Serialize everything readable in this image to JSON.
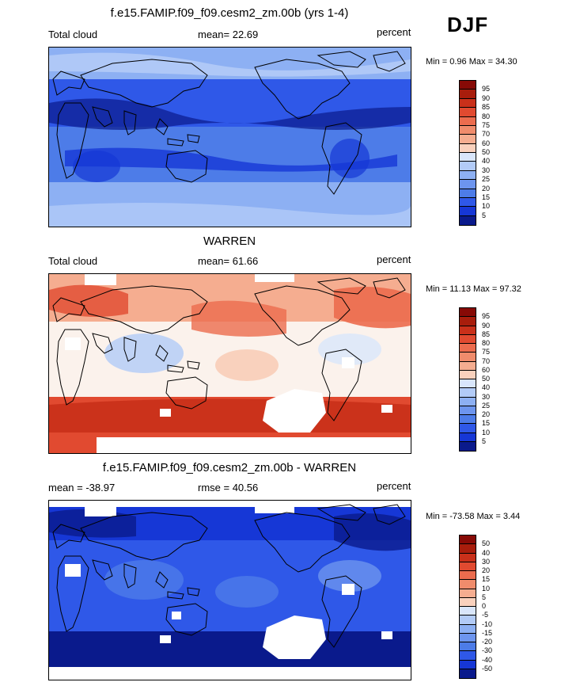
{
  "season": "DJF",
  "colors": {
    "levels_abs": [
      "#0a1a8c",
      "#1637d6",
      "#2f58e8",
      "#4d7ce8",
      "#6d95ee",
      "#8db0f3",
      "#b2cbf7",
      "#d9e6fb",
      "#fbf2ec",
      "#f9d1bd",
      "#f5ad90",
      "#f08c6c",
      "#ec6c4e",
      "#e14a30",
      "#c9301a",
      "#a81d0c",
      "#870a06"
    ]
  },
  "panels": [
    {
      "title": "f.e15.FAMIP.f09_f09.cesm2_zm.00b (yrs 1-4)",
      "left_label": "Total cloud",
      "center_label": "mean=  22.69",
      "right_label": "percent",
      "minmax": "Min =   0.96 Max =  34.30",
      "colorbar_labels": [
        "95",
        "90",
        "85",
        "80",
        "75",
        "70",
        "60",
        "50",
        "40",
        "30",
        "25",
        "20",
        "15",
        "10",
        "5"
      ]
    },
    {
      "title": "WARREN",
      "left_label": "Total cloud",
      "center_label": "mean=  61.66",
      "right_label": "percent",
      "minmax": "Min =  11.13 Max =  97.32",
      "colorbar_labels": [
        "95",
        "90",
        "85",
        "80",
        "75",
        "70",
        "60",
        "50",
        "40",
        "30",
        "25",
        "20",
        "15",
        "10",
        "5"
      ]
    },
    {
      "title": "f.e15.FAMIP.f09_f09.cesm2_zm.00b - WARREN",
      "left_label": "mean = -38.97",
      "center_label": "rmse =  40.56",
      "right_label": "percent",
      "minmax": "Min = -73.58 Max =   3.44",
      "colorbar_labels": [
        "50",
        "40",
        "30",
        "20",
        "15",
        "10",
        "5",
        "0",
        "-5",
        "-10",
        "-15",
        "-20",
        "-30",
        "-40",
        "-50"
      ]
    }
  ]
}
